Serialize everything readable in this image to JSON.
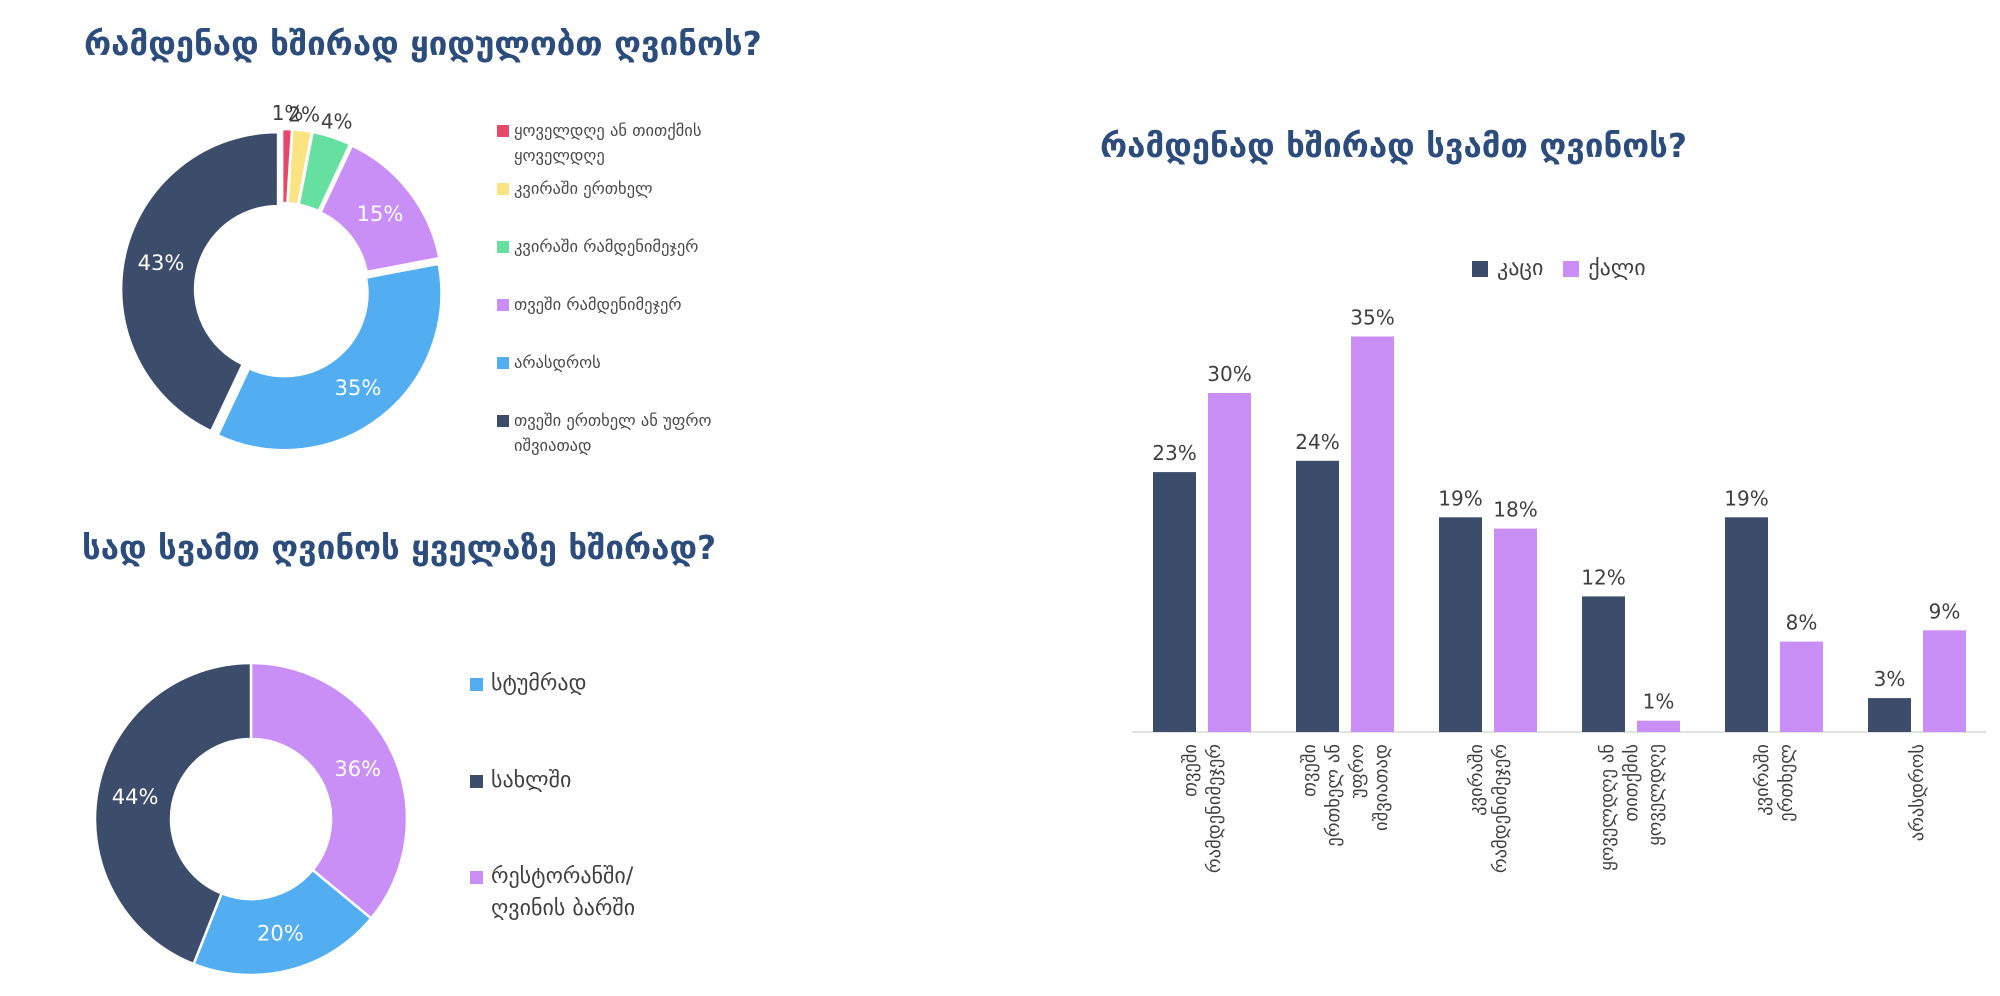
{
  "chart_data": [
    {
      "type": "pie",
      "title": "რამდენად ხშირად ყიდულობთ ღვინოს?",
      "slices": [
        {
          "label": "ყოველდღე ან თითქმის ყოველდღე",
          "value": 1,
          "color": "#e8476b"
        },
        {
          "label": "კვირაში ერთხელ",
          "value": 2,
          "color": "#fce382"
        },
        {
          "label": "კვირაში რამდენიმეჯერ",
          "value": 4,
          "color": "#66e0a0"
        },
        {
          "label": "თვეში რამდენიმეჯერ",
          "value": 15,
          "color": "#c98ff6"
        },
        {
          "label": "არასდროს",
          "value": 35,
          "color": "#52aef0"
        },
        {
          "label": "თვეში ერთხელ ან უფრო იშვიათად",
          "value": 43,
          "color": "#3c4c6b"
        }
      ],
      "value_labels": [
        "1%",
        "2%",
        "4%",
        "15%",
        "35%",
        "43%"
      ],
      "legend_position": "right"
    },
    {
      "type": "pie",
      "title": "სად სვამთ ღვინოს ყველაზე ხშირად?",
      "slices": [
        {
          "label": "რესტორანში/ღვინის ბარში",
          "value": 36,
          "color": "#c98ff6"
        },
        {
          "label": "სტუმრად",
          "value": 20,
          "color": "#52aef0"
        },
        {
          "label": "სახლში",
          "value": 44,
          "color": "#3c4c6b"
        }
      ],
      "value_labels": [
        "36%",
        "20%",
        "44%"
      ],
      "legend": [
        {
          "label": "სტუმრად",
          "color": "#52aef0"
        },
        {
          "label": "სახლში",
          "color": "#3c4c6b"
        },
        {
          "label": "რესტორანში/ღვინის ბარში",
          "color": "#c98ff6"
        }
      ],
      "legend_position": "right"
    },
    {
      "type": "bar",
      "title": "რამდენად ხშირად სვამთ ღვინოს?",
      "categories": [
        "თვეში რამდენიმეჯერ",
        "თვეში ერთხელ ან უფრო იშვიათად",
        "კვირაში რამდენიმეჯერ",
        "ყოველდღე ან თითქმის ყოველდღე",
        "კვირაში ერთხელ",
        "არასდროს"
      ],
      "series": [
        {
          "name": "კაცი",
          "values": [
            23,
            24,
            19,
            12,
            19,
            3
          ],
          "labels": [
            "23%",
            "24%",
            "19%",
            "12%",
            "19%",
            "3%"
          ],
          "color": "#3c4c6b"
        },
        {
          "name": "ქალი",
          "values": [
            30,
            35,
            18,
            1,
            8,
            9
          ],
          "labels": [
            "30%",
            "35%",
            "18%",
            "1%",
            "8%",
            "9%"
          ],
          "color": "#c98ff6"
        }
      ],
      "ylim": [
        0,
        40
      ],
      "grid": false,
      "legend_position": "top"
    }
  ]
}
